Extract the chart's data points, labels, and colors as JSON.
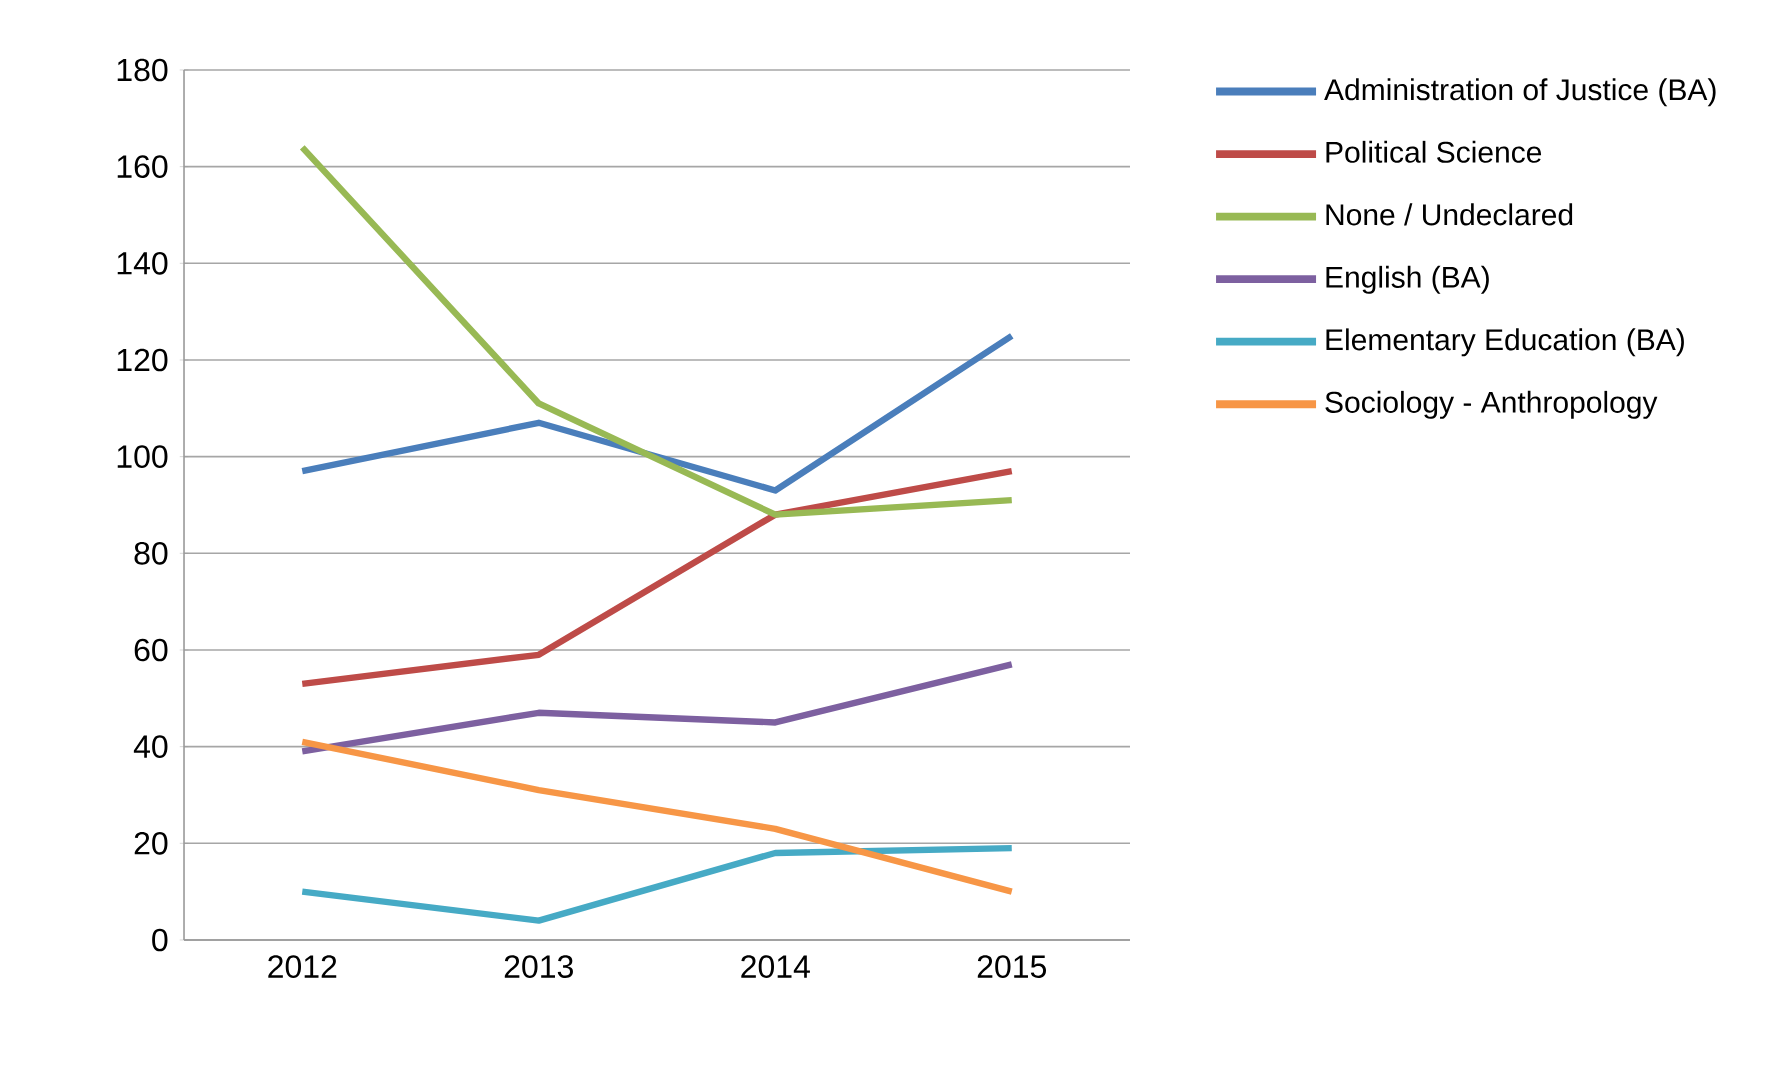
{
  "chart_data": {
    "type": "line",
    "categories": [
      "2012",
      "2013",
      "2014",
      "2015"
    ],
    "series": [
      {
        "name": "Administration of Justice (BA)",
        "color": "#4a7ebb",
        "values": [
          97,
          107,
          93,
          125
        ]
      },
      {
        "name": "Political Science",
        "color": "#be4b48",
        "values": [
          53,
          59,
          88,
          97
        ]
      },
      {
        "name": "None / Undeclared",
        "color": "#98b954",
        "values": [
          164,
          111,
          88,
          91
        ]
      },
      {
        "name": "English (BA)",
        "color": "#7d60a0",
        "values": [
          39,
          47,
          45,
          57
        ]
      },
      {
        "name": "Elementary Education (BA)",
        "color": "#46aac5",
        "values": [
          10,
          4,
          18,
          19
        ]
      },
      {
        "name": "Sociology - Anthropology",
        "color": "#f79646",
        "values": [
          41,
          31,
          23,
          10
        ]
      }
    ],
    "ylim": [
      0,
      180
    ],
    "yticks": [
      0,
      20,
      40,
      60,
      80,
      100,
      120,
      140,
      160,
      180
    ],
    "grid": "y",
    "legend": "right",
    "marker": "none",
    "line_style": "solid"
  }
}
